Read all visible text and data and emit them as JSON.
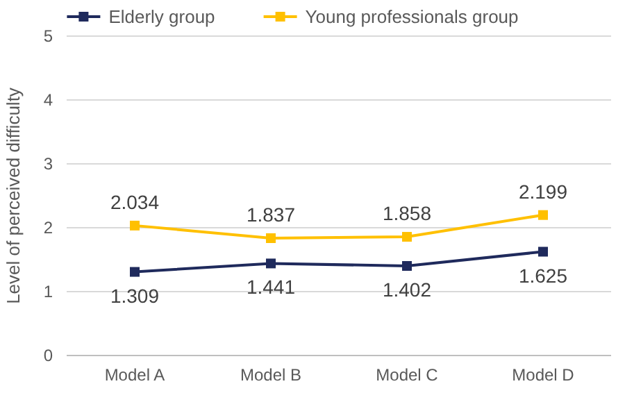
{
  "chart_data": {
    "type": "line",
    "ylabel": "Level of perceived difficulty",
    "categories": [
      "Model A",
      "Model B",
      "Model C",
      "Model D"
    ],
    "series": [
      {
        "name": "Elderly group",
        "color": "#1f2a5c",
        "values": [
          1.309,
          1.441,
          1.402,
          1.625
        ]
      },
      {
        "name": "Young professionals group",
        "color": "#ffc000",
        "values": [
          2.034,
          1.837,
          1.858,
          2.199
        ]
      }
    ],
    "ylim": [
      0,
      5
    ],
    "yticks": [
      0,
      1,
      2,
      3,
      4,
      5
    ],
    "grid": "y",
    "legend": "top",
    "marker": "square",
    "line_style": "solid",
    "data_labels": true
  }
}
